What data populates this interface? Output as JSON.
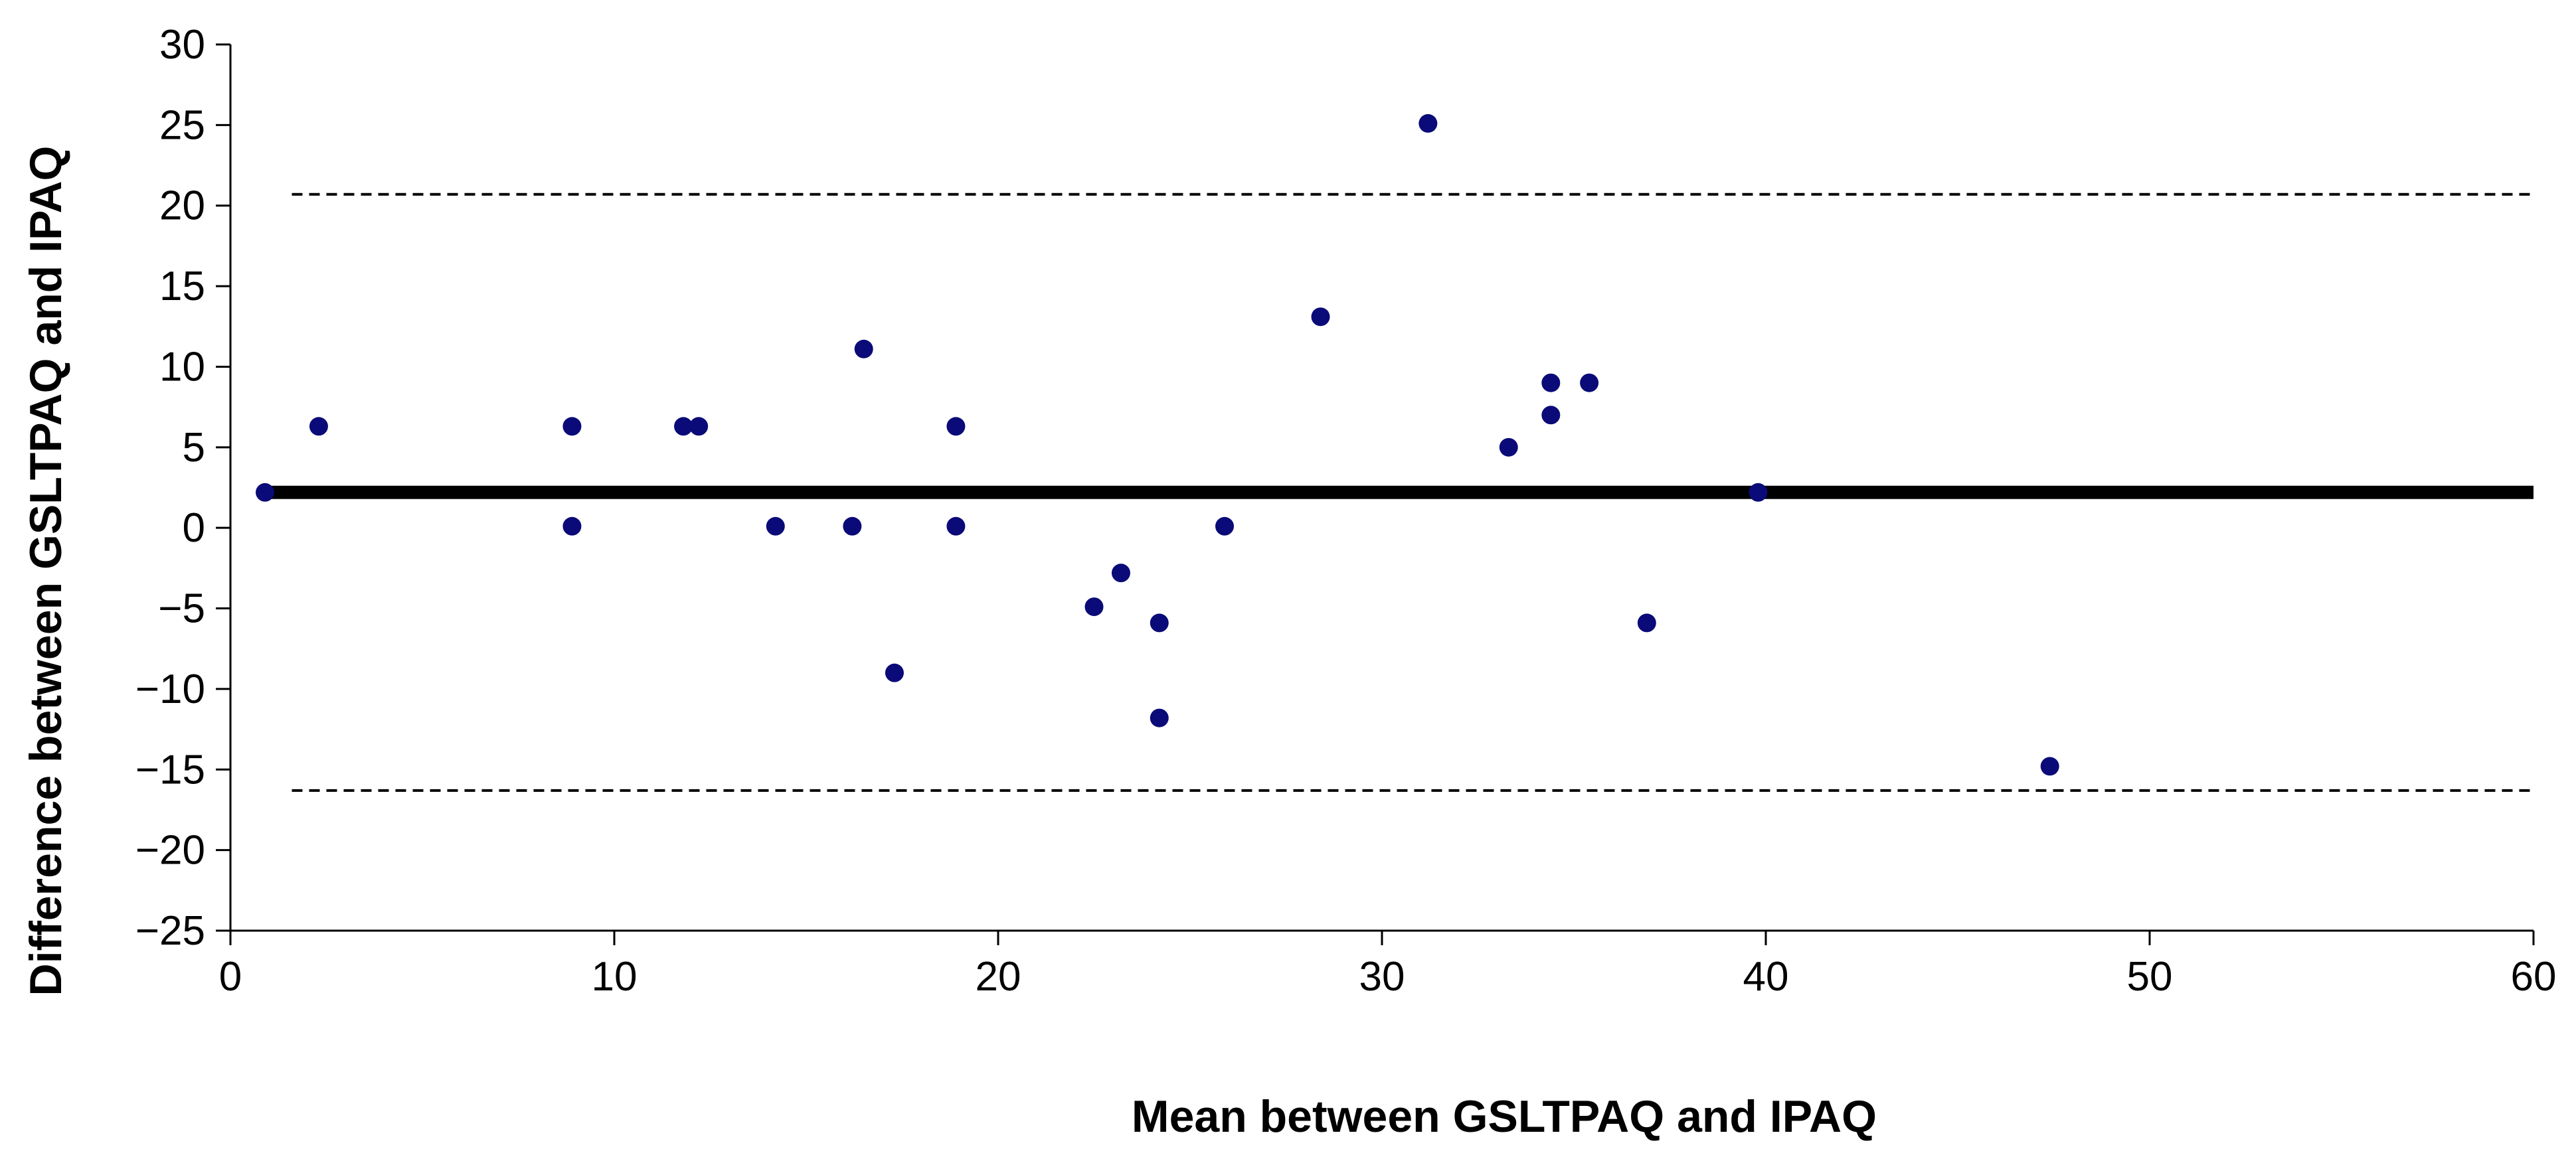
{
  "chart_data": {
    "type": "scatter",
    "title": "",
    "xlabel": "Mean between GSLTPAQ and IPAQ",
    "ylabel": "Difference between GSLTPAQ and IPAQ",
    "xlim": [
      0,
      60
    ],
    "ylim": [
      -25,
      30
    ],
    "xticks": [
      0,
      10,
      20,
      30,
      40,
      50,
      60
    ],
    "yticks": [
      30,
      25,
      20,
      15,
      10,
      5,
      0,
      -5,
      -10,
      -15,
      -20,
      -25
    ],
    "xtick_labels": [
      "0",
      "10",
      "20",
      "30",
      "40",
      "50",
      "60"
    ],
    "ytick_labels": [
      "30",
      "25",
      "20",
      "15",
      "10",
      "5",
      "0",
      "−5",
      "−10",
      "−15",
      "−20",
      "−25"
    ],
    "grid": false,
    "legend": "none",
    "point_color": "#0a0a78",
    "mean_line": 2.2,
    "upper_limit": 20.7,
    "lower_limit": -16.3,
    "points": [
      {
        "x": 0.9,
        "y": 2.2
      },
      {
        "x": 2.3,
        "y": 6.3
      },
      {
        "x": 8.9,
        "y": 6.3
      },
      {
        "x": 8.9,
        "y": 0.1
      },
      {
        "x": 11.8,
        "y": 6.3
      },
      {
        "x": 12.2,
        "y": 6.3
      },
      {
        "x": 14.2,
        "y": 0.1
      },
      {
        "x": 16.2,
        "y": 0.1
      },
      {
        "x": 16.5,
        "y": 11.1
      },
      {
        "x": 17.3,
        "y": -9.0
      },
      {
        "x": 18.9,
        "y": 6.3
      },
      {
        "x": 18.9,
        "y": 0.1
      },
      {
        "x": 22.5,
        "y": -4.9
      },
      {
        "x": 23.2,
        "y": -2.8
      },
      {
        "x": 24.2,
        "y": -5.9
      },
      {
        "x": 24.2,
        "y": -11.8
      },
      {
        "x": 25.9,
        "y": 0.1
      },
      {
        "x": 28.4,
        "y": 13.1
      },
      {
        "x": 31.2,
        "y": 25.1
      },
      {
        "x": 33.3,
        "y": 5.0
      },
      {
        "x": 34.4,
        "y": 9.0
      },
      {
        "x": 34.4,
        "y": 7.0
      },
      {
        "x": 35.4,
        "y": 9.0
      },
      {
        "x": 36.9,
        "y": -5.9
      },
      {
        "x": 39.8,
        "y": 2.2
      },
      {
        "x": 47.4,
        "y": -14.8
      }
    ]
  }
}
